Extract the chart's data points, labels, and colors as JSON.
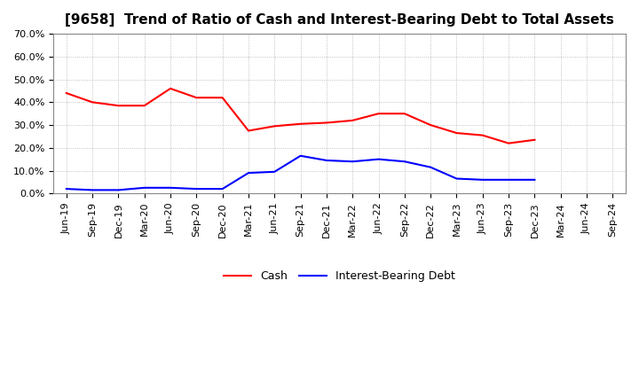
{
  "title": "[9658]  Trend of Ratio of Cash and Interest-Bearing Debt to Total Assets",
  "x_labels": [
    "Jun-19",
    "Sep-19",
    "Dec-19",
    "Mar-20",
    "Jun-20",
    "Sep-20",
    "Dec-20",
    "Mar-21",
    "Jun-21",
    "Sep-21",
    "Dec-21",
    "Mar-22",
    "Jun-22",
    "Sep-22",
    "Dec-22",
    "Mar-23",
    "Jun-23",
    "Sep-23",
    "Dec-23",
    "Mar-24",
    "Jun-24",
    "Sep-24"
  ],
  "cash": [
    44.0,
    40.0,
    38.5,
    38.5,
    46.0,
    42.0,
    42.0,
    27.5,
    29.5,
    30.5,
    31.0,
    32.0,
    35.0,
    35.0,
    30.0,
    26.5,
    25.5,
    22.0,
    23.5,
    null,
    null,
    null
  ],
  "interest_bearing_debt": [
    2.0,
    1.5,
    1.5,
    2.5,
    2.5,
    2.0,
    2.0,
    9.0,
    9.5,
    16.5,
    14.5,
    14.0,
    15.0,
    14.0,
    11.5,
    6.5,
    6.0,
    6.0,
    6.0,
    null,
    null,
    null
  ],
  "cash_color": "#ff0000",
  "ibd_color": "#0000ff",
  "background_color": "#ffffff",
  "plot_bg_color": "#ffffff",
  "grid_color": "#b0b0b0",
  "ylim": [
    0,
    70
  ],
  "yticks": [
    0,
    10,
    20,
    30,
    40,
    50,
    60,
    70
  ],
  "legend_cash": "Cash",
  "legend_ibd": "Interest-Bearing Debt",
  "line_width": 1.5,
  "title_fontsize": 11,
  "tick_fontsize": 8,
  "legend_fontsize": 9
}
